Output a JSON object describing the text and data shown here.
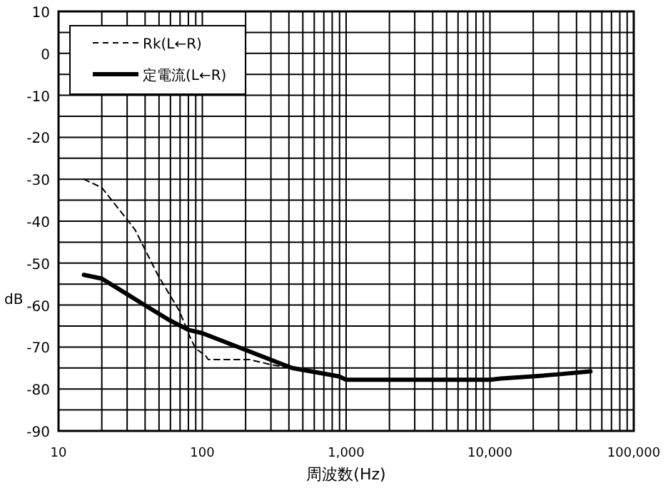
{
  "chart_data": {
    "type": "line",
    "xlabel": "周波数(Hz)",
    "ylabel": "dB",
    "log": "x",
    "grid": true,
    "legend": "top left",
    "xlim": [
      10,
      100000
    ],
    "ylim": [
      -90,
      10
    ],
    "xticks": [
      {
        "value": 10,
        "label": "10"
      },
      {
        "value": 20,
        "label": null
      },
      {
        "value": 30,
        "label": null
      },
      {
        "value": 40,
        "label": null
      },
      {
        "value": 50,
        "label": null
      },
      {
        "value": 60,
        "label": null
      },
      {
        "value": 70,
        "label": null
      },
      {
        "value": 80,
        "label": null
      },
      {
        "value": 90,
        "label": null
      },
      {
        "value": 100,
        "label": "100"
      },
      {
        "value": 200,
        "label": null
      },
      {
        "value": 300,
        "label": null
      },
      {
        "value": 400,
        "label": null
      },
      {
        "value": 500,
        "label": null
      },
      {
        "value": 600,
        "label": null
      },
      {
        "value": 700,
        "label": null
      },
      {
        "value": 800,
        "label": null
      },
      {
        "value": 900,
        "label": null
      },
      {
        "value": 1000,
        "label": "1,000"
      },
      {
        "value": 2000,
        "label": null
      },
      {
        "value": 3000,
        "label": null
      },
      {
        "value": 4000,
        "label": null
      },
      {
        "value": 5000,
        "label": null
      },
      {
        "value": 6000,
        "label": null
      },
      {
        "value": 7000,
        "label": null
      },
      {
        "value": 8000,
        "label": null
      },
      {
        "value": 9000,
        "label": null
      },
      {
        "value": 10000,
        "label": "10,000"
      },
      {
        "value": 20000,
        "label": null
      },
      {
        "value": 30000,
        "label": null
      },
      {
        "value": 40000,
        "label": null
      },
      {
        "value": 50000,
        "label": null
      },
      {
        "value": 60000,
        "label": null
      },
      {
        "value": 70000,
        "label": null
      },
      {
        "value": 80000,
        "label": null
      },
      {
        "value": 90000,
        "label": null
      },
      {
        "value": 100000,
        "label": "100,000"
      }
    ],
    "yticks": [
      -90,
      {
        "value": -85,
        "label": null
      },
      -80,
      {
        "value": -75,
        "label": null
      },
      -70,
      {
        "value": -65,
        "label": null
      },
      -60,
      {
        "value": -55,
        "label": null
      },
      -50,
      {
        "value": -45,
        "label": null
      },
      -40,
      {
        "value": -35,
        "label": null
      },
      -30,
      {
        "value": -25,
        "label": null
      },
      -20,
      {
        "value": -15,
        "label": null
      },
      -10,
      {
        "value": -5,
        "label": null
      },
      0,
      {
        "value": 5,
        "label": null
      },
      10
    ],
    "series": [
      {
        "name": "Rk(L←R)",
        "color": "#000000",
        "line_style": "dashed",
        "x": [
          15,
          20,
          34,
          49,
          69,
          83,
          90,
          105,
          110,
          213,
          310,
          420,
          500
        ],
        "values": [
          -30,
          -32,
          -42,
          -52.8,
          -61.3,
          -68,
          -70.4,
          -72,
          -73,
          -73,
          -74.3,
          -75,
          -75
        ]
      },
      {
        "name": "定電流(L←R)",
        "color": "#000000",
        "line_style": "solid",
        "x": [
          15,
          20,
          30,
          38,
          59,
          80,
          100,
          200,
          420,
          890,
          1000,
          5000,
          10000,
          12000,
          20000,
          30000,
          50000
        ],
        "values": [
          -52.8,
          -53.7,
          -57.4,
          -59.6,
          -63.6,
          -65.9,
          -66.7,
          -70.7,
          -75,
          -77,
          -77.8,
          -77.8,
          -77.8,
          -77.5,
          -77,
          -76.5,
          -75.8
        ]
      }
    ]
  }
}
